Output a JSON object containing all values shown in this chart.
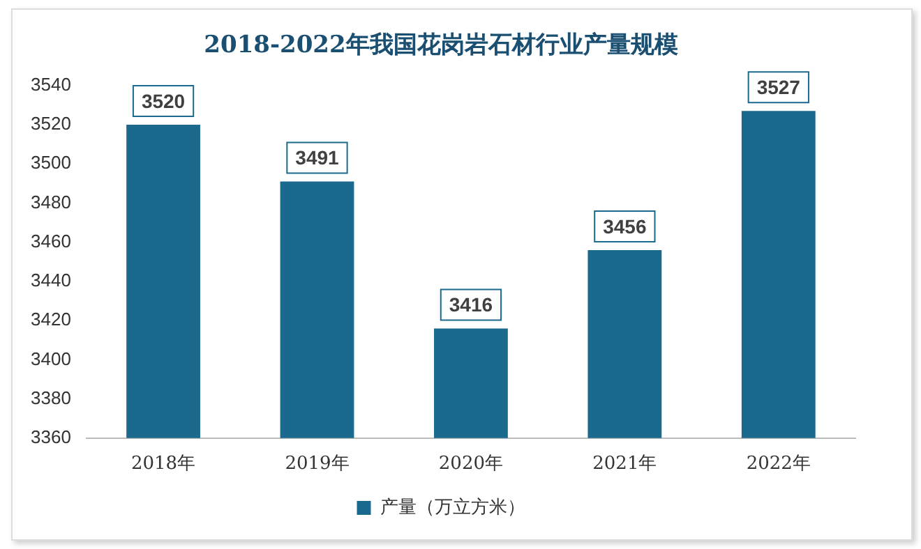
{
  "chart_data": {
    "type": "bar",
    "title": "2018-2022年我国花岗岩石材行业产量规模",
    "categories": [
      "2018年",
      "2019年",
      "2020年",
      "2021年",
      "2022年"
    ],
    "series": [
      {
        "name": "产量（万立方米）",
        "color": "#1b6a8e",
        "values": [
          3520,
          3491,
          3416,
          3456,
          3527
        ]
      }
    ],
    "ylim": [
      3360,
      3540
    ],
    "yticks": [
      3360,
      3380,
      3400,
      3420,
      3440,
      3460,
      3480,
      3500,
      3520,
      3540
    ],
    "grid": false,
    "legend": "bottom",
    "data_labels": true
  }
}
